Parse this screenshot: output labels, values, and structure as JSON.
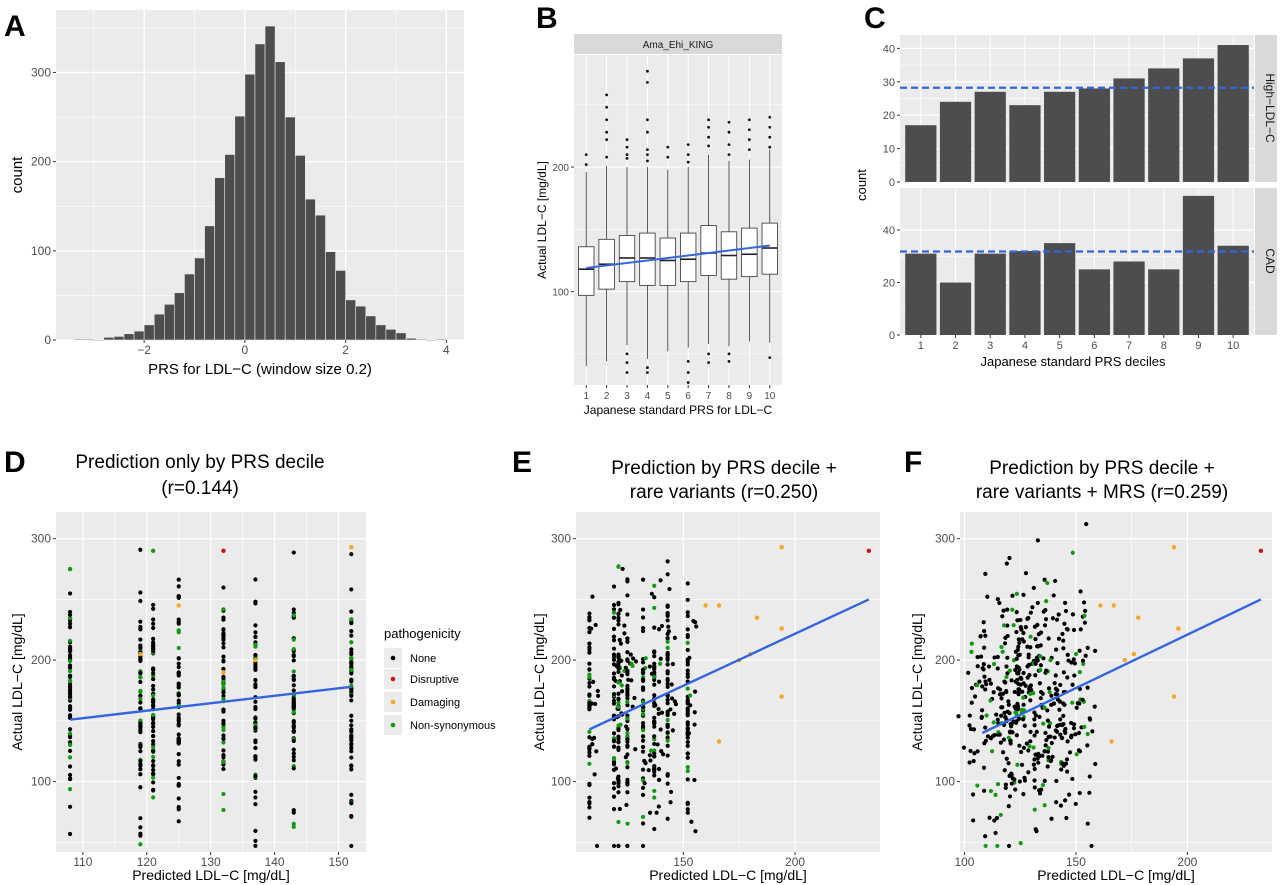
{
  "figure": {
    "colors": {
      "panel_bg": "#ebebeb",
      "grid": "#ffffff",
      "bar": "#4d4d4d",
      "fit_line": "#3366dd",
      "strip_bg": "#d9d9d9",
      "axis_text": "#4d4d4d",
      "point_none": "#000000",
      "point_disruptive": "#cc1111",
      "point_damaging": "#f5a623",
      "point_nonsyn": "#129912"
    },
    "panels": [
      {
        "letter": "A"
      },
      {
        "letter": "B"
      },
      {
        "letter": "C"
      },
      {
        "letter": "D"
      },
      {
        "letter": "E"
      },
      {
        "letter": "F"
      }
    ],
    "legend": {
      "title": "pathogenicity",
      "items": [
        {
          "label": "None",
          "color": "#000000"
        },
        {
          "label": "Disruptive",
          "color": "#cc1111"
        },
        {
          "label": "Damaging",
          "color": "#f5a623"
        },
        {
          "label": "Non-synonymous",
          "color": "#129912"
        }
      ]
    }
  },
  "chart_data": [
    {
      "panel": "A",
      "type": "bar",
      "xlabel": "PRS for LDL−C (window size 0.2)",
      "ylabel": "count",
      "xlim": [
        -3.75,
        4.35
      ],
      "ylim": [
        0,
        370
      ],
      "xticks": [
        -2,
        0,
        2,
        4
      ],
      "xtick_labels": [
        "−2",
        "0",
        "2",
        "4"
      ],
      "yticks": [
        0,
        100,
        200,
        300
      ],
      "bin_width": 0.2,
      "bin_centers": [
        -3.3,
        -3.1,
        -2.9,
        -2.7,
        -2.5,
        -2.3,
        -2.1,
        -1.9,
        -1.7,
        -1.5,
        -1.3,
        -1.1,
        -0.9,
        -0.7,
        -0.5,
        -0.3,
        -0.1,
        0.1,
        0.3,
        0.5,
        0.7,
        0.9,
        1.1,
        1.3,
        1.5,
        1.7,
        1.9,
        2.1,
        2.3,
        2.5,
        2.7,
        2.9,
        3.1,
        3.3,
        3.5,
        3.7,
        3.9
      ],
      "counts": [
        1,
        1,
        0,
        3,
        4,
        7,
        10,
        17,
        29,
        40,
        53,
        74,
        92,
        128,
        182,
        208,
        251,
        298,
        332,
        352,
        312,
        250,
        207,
        158,
        140,
        99,
        78,
        45,
        38,
        27,
        17,
        12,
        8,
        2,
        1,
        0,
        1
      ]
    },
    {
      "panel": "B",
      "type": "box",
      "facet": "Ama_Ehi_KING",
      "xlabel": "Japanese standard PRS for LDL−C",
      "ylabel": "Actual LDL−C [mg/dL]",
      "ylim": [
        25,
        290
      ],
      "yticks": [
        100,
        200
      ],
      "categories": [
        "1",
        "2",
        "3",
        "4",
        "5",
        "6",
        "7",
        "8",
        "9",
        "10"
      ],
      "boxes": [
        {
          "min": 40,
          "q1": 97,
          "median": 118,
          "q3": 136,
          "max": 196,
          "outliers": [
            202,
            210
          ]
        },
        {
          "min": 44,
          "q1": 102,
          "median": 122,
          "q3": 142,
          "max": 201,
          "outliers": [
            208,
            222,
            228,
            238,
            248,
            258
          ]
        },
        {
          "min": 57,
          "q1": 108,
          "median": 127,
          "q3": 145,
          "max": 200,
          "outliers": [
            35,
            43,
            50,
            207,
            210,
            216,
            222
          ]
        },
        {
          "min": 46,
          "q1": 105,
          "median": 127,
          "q3": 147,
          "max": 200,
          "outliers": [
            35,
            39,
            205,
            210,
            214,
            228,
            238,
            268,
            277
          ]
        },
        {
          "min": 52,
          "q1": 105,
          "median": 125,
          "q3": 143,
          "max": 198,
          "outliers": [
            208,
            216
          ]
        },
        {
          "min": 55,
          "q1": 108,
          "median": 126,
          "q3": 147,
          "max": 200,
          "outliers": [
            27,
            35,
            44,
            204,
            210,
            218
          ]
        },
        {
          "min": 58,
          "q1": 113,
          "median": 131,
          "q3": 153,
          "max": 210,
          "outliers": [
            43,
            50,
            217,
            224,
            232,
            238
          ]
        },
        {
          "min": 56,
          "q1": 110,
          "median": 129,
          "q3": 148,
          "max": 205,
          "outliers": [
            44,
            50,
            210,
            218,
            228,
            236
          ]
        },
        {
          "min": 60,
          "q1": 112,
          "median": 130,
          "q3": 151,
          "max": 206,
          "outliers": [
            214,
            222,
            230,
            238
          ]
        },
        {
          "min": 59,
          "q1": 114,
          "median": 135,
          "q3": 155,
          "max": 214,
          "outliers": [
            47,
            216,
            224,
            232,
            240
          ]
        }
      ],
      "fit_line": {
        "x": [
          1,
          10
        ],
        "y": [
          119,
          137
        ]
      }
    },
    {
      "panel": "C",
      "type": "bar",
      "xlabel": "Japanese standard PRS deciles",
      "ylabel": "count",
      "categories": [
        "1",
        "2",
        "3",
        "4",
        "5",
        "6",
        "7",
        "8",
        "9",
        "10"
      ],
      "facets": [
        {
          "label": "High−LDL−C",
          "values": [
            17,
            24,
            27,
            23,
            27,
            28,
            31,
            34,
            37,
            41
          ],
          "ylim": [
            0,
            44
          ],
          "yticks": [
            0,
            10,
            20,
            30,
            40
          ],
          "hline": 28.2
        },
        {
          "label": "CAD",
          "values": [
            31,
            20,
            31,
            32,
            35,
            25,
            28,
            25,
            53,
            34
          ],
          "ylim": [
            0,
            56
          ],
          "yticks": [
            0,
            20,
            40
          ],
          "hline": 31.8
        }
      ]
    },
    {
      "panel": "D",
      "type": "scatter",
      "title": "Prediction only by PRS decile",
      "subtitle": "(r=0.144)",
      "xlabel": "Predicted LDL−C [mg/dL]",
      "ylabel": "Actual LDL−C [mg/dL]",
      "xlim": [
        105.8,
        154.3
      ],
      "ylim": [
        42,
        322
      ],
      "xticks": [
        110,
        120,
        130,
        140,
        150
      ],
      "yticks": [
        100,
        200,
        300
      ],
      "x_levels": [
        108,
        119,
        121,
        125,
        132,
        137,
        143,
        152
      ],
      "fit_line": {
        "x": [
          108,
          152
        ],
        "y": [
          151,
          178
        ]
      },
      "highlights": [
        {
          "x": 132,
          "y": 290,
          "pathogenicity": "Disruptive"
        },
        {
          "x": 108,
          "y": 275,
          "pathogenicity": "Non-synonymous"
        },
        {
          "x": 121,
          "y": 290,
          "pathogenicity": "Non-synonymous"
        },
        {
          "x": 119,
          "y": 205,
          "pathogenicity": "Damaging"
        },
        {
          "x": 125,
          "y": 245,
          "pathogenicity": "Damaging"
        },
        {
          "x": 132,
          "y": 190,
          "pathogenicity": "Damaging"
        },
        {
          "x": 137,
          "y": 200,
          "pathogenicity": "Damaging"
        },
        {
          "x": 152,
          "y": 293,
          "pathogenicity": "Damaging"
        }
      ]
    },
    {
      "panel": "E",
      "type": "scatter",
      "title": "Prediction by PRS decile +",
      "subtitle": "rare variants (r=0.250)",
      "xlabel": "Predicted LDL−C [mg/dL]",
      "ylabel": "Actual LDL−C [mg/dL]",
      "xlim": [
        102,
        238
      ],
      "ylim": [
        42,
        322
      ],
      "xticks": [
        150,
        200
      ],
      "yticks": [
        100,
        200,
        300
      ],
      "fit_line": {
        "x": [
          108,
          233
        ],
        "y": [
          143,
          250
        ]
      },
      "highlights": [
        {
          "x": 233,
          "y": 290,
          "pathogenicity": "Disruptive"
        },
        {
          "x": 194,
          "y": 293,
          "pathogenicity": "Damaging"
        },
        {
          "x": 194,
          "y": 226,
          "pathogenicity": "Damaging"
        },
        {
          "x": 194,
          "y": 170,
          "pathogenicity": "Damaging"
        },
        {
          "x": 166,
          "y": 133,
          "pathogenicity": "Damaging"
        },
        {
          "x": 160,
          "y": 245,
          "pathogenicity": "Damaging"
        },
        {
          "x": 166,
          "y": 245,
          "pathogenicity": "Damaging"
        },
        {
          "x": 175,
          "y": 200,
          "pathogenicity": "Damaging"
        },
        {
          "x": 180,
          "y": 205,
          "pathogenicity": "Damaging"
        },
        {
          "x": 183,
          "y": 235,
          "pathogenicity": "Damaging"
        }
      ]
    },
    {
      "panel": "F",
      "type": "scatter",
      "title": "Prediction by PRS decile +",
      "subtitle": "rare variants + MRS (r=0.259)",
      "xlabel": "Predicted LDL−C [mg/dL]",
      "ylabel": "Actual LDL−C [mg/dL]",
      "xlim": [
        98,
        238
      ],
      "ylim": [
        42,
        322
      ],
      "xticks": [
        100,
        150,
        200
      ],
      "yticks": [
        100,
        200,
        300
      ],
      "fit_line": {
        "x": [
          108,
          233
        ],
        "y": [
          140,
          250
        ]
      },
      "highlights": [
        {
          "x": 233,
          "y": 290,
          "pathogenicity": "Disruptive"
        },
        {
          "x": 194,
          "y": 293,
          "pathogenicity": "Damaging"
        },
        {
          "x": 196,
          "y": 226,
          "pathogenicity": "Damaging"
        },
        {
          "x": 194,
          "y": 170,
          "pathogenicity": "Damaging"
        },
        {
          "x": 166,
          "y": 133,
          "pathogenicity": "Damaging"
        },
        {
          "x": 161,
          "y": 245,
          "pathogenicity": "Damaging"
        },
        {
          "x": 167,
          "y": 245,
          "pathogenicity": "Damaging"
        },
        {
          "x": 176,
          "y": 205,
          "pathogenicity": "Damaging"
        },
        {
          "x": 178,
          "y": 235,
          "pathogenicity": "Damaging"
        },
        {
          "x": 172,
          "y": 200,
          "pathogenicity": "Damaging"
        }
      ]
    }
  ]
}
